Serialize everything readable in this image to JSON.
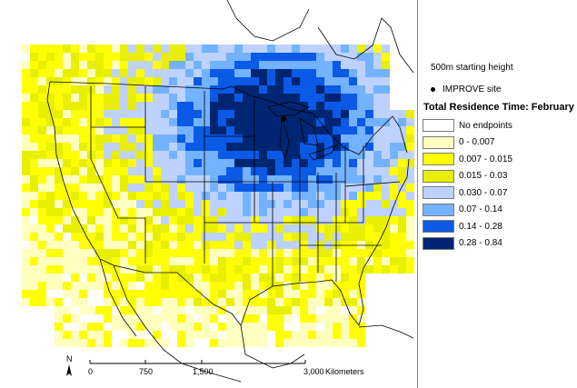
{
  "legend": {
    "starting_height": "500m starting height",
    "site_label": "IMPROVE site",
    "title": "Total Residence Time: February",
    "classes": [
      {
        "label": "No endpoints",
        "color": "#ffffff"
      },
      {
        "label": "0 - 0.007",
        "color": "#ffffc0"
      },
      {
        "label": "0.007 - 0.015",
        "color": "#ffff00"
      },
      {
        "label": "0.015 - 0.03",
        "color": "#e8ef00"
      },
      {
        "label": "0.030 - 0.07",
        "color": "#bed2ff"
      },
      {
        "label": "0.07 - 0.14",
        "color": "#73b2ff"
      },
      {
        "label": "0.14 - 0.28",
        "color": "#0a5ae6"
      },
      {
        "label": "0.28 - 0.84",
        "color": "#002673"
      }
    ]
  },
  "scalebar": {
    "ticks": [
      "0",
      "750",
      "1,500",
      "3,000"
    ],
    "unit": "Kilometers"
  },
  "north_arrow": "N",
  "map_colors": {
    "boundary": "#000000",
    "background": "#ffffff"
  }
}
